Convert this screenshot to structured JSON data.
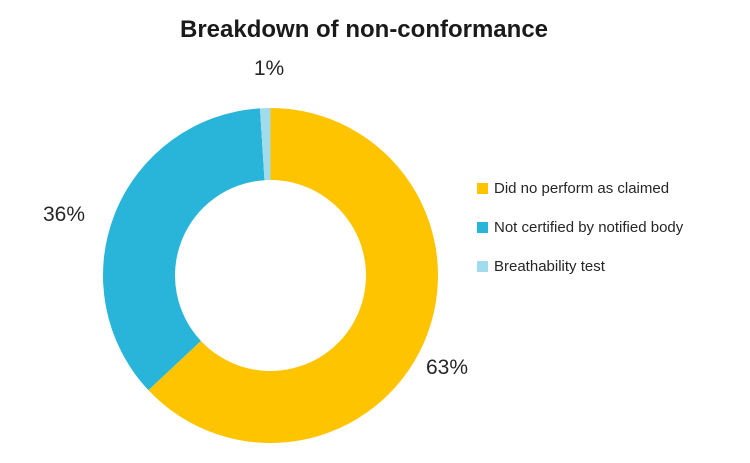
{
  "title": "Breakdown of non-conformance",
  "chart_data": {
    "type": "pie",
    "subtype": "donut",
    "title": "Breakdown of non-conformance",
    "categories": [
      "Did no perform as claimed",
      "Not certified by notified body",
      "Breathability test"
    ],
    "values": [
      63,
      36,
      1
    ],
    "unit": "percent",
    "data_labels": [
      "63%",
      "36%",
      "1%"
    ],
    "colors": [
      "#FFC400",
      "#29B5D9",
      "#A0DCEB"
    ],
    "start_angle_deg": 0,
    "direction": "clockwise",
    "donut_hole_ratio": 0.57,
    "legend_position": "right",
    "grid": "off"
  },
  "legend": {
    "items": [
      {
        "label": "Did no perform as claimed"
      },
      {
        "label": "Not certified by notified body"
      },
      {
        "label": "Breathability test"
      }
    ]
  }
}
